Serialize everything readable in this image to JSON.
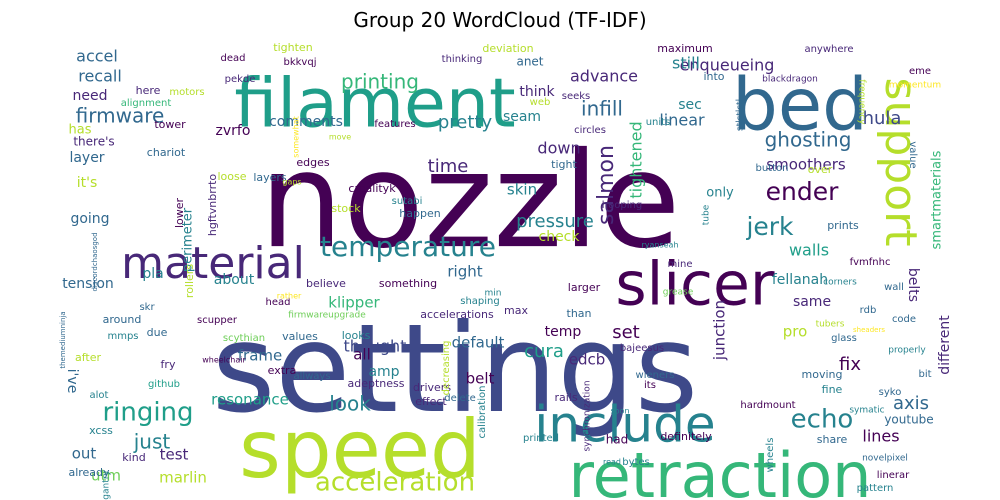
{
  "chart_data": {
    "type": "wordcloud",
    "title": "Group 20 WordCloud (TF-IDF)",
    "colormap": [
      "#440154",
      "#482878",
      "#3e4989",
      "#31688e",
      "#26828e",
      "#1f9e89",
      "#35b779",
      "#6ece58",
      "#b5de2b",
      "#fde725"
    ],
    "words": [
      {
        "text": "nozzle",
        "weight": 100,
        "color": "#440154"
      },
      {
        "text": "settings",
        "weight": 92,
        "color": "#3e4989"
      },
      {
        "text": "speed",
        "weight": 58,
        "color": "#b5de2b"
      },
      {
        "text": "bed",
        "weight": 52,
        "color": "#31688e"
      },
      {
        "text": "filament",
        "weight": 50,
        "color": "#1f9e89"
      },
      {
        "text": "retraction",
        "weight": 45,
        "color": "#35b779"
      },
      {
        "text": "slicer",
        "weight": 44,
        "color": "#440154"
      },
      {
        "text": "include",
        "weight": 38,
        "color": "#26828e"
      },
      {
        "text": "material",
        "weight": 33,
        "color": "#482878"
      },
      {
        "text": "support",
        "weight": 33,
        "color": "#b5de2b"
      },
      {
        "text": "temperature",
        "weight": 22,
        "color": "#26828e"
      },
      {
        "text": "acceleration",
        "weight": 20,
        "color": "#b5de2b"
      },
      {
        "text": "echo",
        "weight": 20,
        "color": "#26828e"
      },
      {
        "text": "ringing",
        "weight": 19,
        "color": "#1f9e89"
      },
      {
        "text": "jerk",
        "weight": 18,
        "color": "#26828e"
      },
      {
        "text": "ender",
        "weight": 18,
        "color": "#440154"
      },
      {
        "text": "salmon",
        "weight": 16,
        "color": "#482878"
      },
      {
        "text": "infill",
        "weight": 15,
        "color": "#31688e"
      },
      {
        "text": "printing",
        "weight": 15,
        "color": "#35b779"
      },
      {
        "text": "firmware",
        "weight": 14,
        "color": "#31688e"
      },
      {
        "text": "ghosting",
        "weight": 14,
        "color": "#31688e"
      },
      {
        "text": "just",
        "weight": 14,
        "color": "#26828e"
      },
      {
        "text": "look",
        "weight": 14,
        "color": "#26828e"
      },
      {
        "text": "axis",
        "weight": 13,
        "color": "#31688e"
      },
      {
        "text": "pretty",
        "weight": 13,
        "color": "#26828e"
      },
      {
        "text": "pressure",
        "weight": 13,
        "color": "#26828e"
      },
      {
        "text": "hula",
        "weight": 13,
        "color": "#3e4989"
      },
      {
        "text": "time",
        "weight": 12,
        "color": "#482878"
      },
      {
        "text": "cura",
        "weight": 12,
        "color": "#1f9e89"
      },
      {
        "text": "set",
        "weight": 12,
        "color": "#440154"
      },
      {
        "text": "fix",
        "weight": 12,
        "color": "#440154"
      },
      {
        "text": "advance",
        "weight": 12,
        "color": "#482878"
      },
      {
        "text": "recall",
        "weight": 12,
        "color": "#31688e"
      },
      {
        "text": "enqueueing",
        "weight": 12,
        "color": "#482878"
      },
      {
        "text": "accel",
        "weight": 11,
        "color": "#31688e"
      },
      {
        "text": "thought",
        "weight": 11,
        "color": "#3e4989"
      },
      {
        "text": "tightened",
        "weight": 11,
        "color": "#35b779"
      },
      {
        "text": "linear",
        "weight": 11,
        "color": "#31688e"
      },
      {
        "text": "still",
        "weight": 11,
        "color": "#26828e"
      },
      {
        "text": "down",
        "weight": 11,
        "color": "#482878"
      },
      {
        "text": "walls",
        "weight": 11,
        "color": "#1f9e89"
      },
      {
        "text": "lines",
        "weight": 11,
        "color": "#440154"
      },
      {
        "text": "resonance",
        "weight": 11,
        "color": "#1f9e89"
      },
      {
        "text": "frame",
        "weight": 11,
        "color": "#31688e"
      },
      {
        "text": "test",
        "weight": 11,
        "color": "#482878"
      },
      {
        "text": "out",
        "weight": 11,
        "color": "#31688e"
      },
      {
        "text": "marlin",
        "weight": 11,
        "color": "#b5de2b"
      },
      {
        "text": "utm",
        "weight": 11,
        "color": "#6ece58"
      },
      {
        "text": "right",
        "weight": 11,
        "color": "#31688e"
      },
      {
        "text": "skin",
        "weight": 11,
        "color": "#26828e"
      },
      {
        "text": "junction",
        "weight": 11,
        "color": "#482878"
      },
      {
        "text": "edcb",
        "weight": 11,
        "color": "#482878"
      },
      {
        "text": "klipper",
        "weight": 11,
        "color": "#35b779"
      },
      {
        "text": "smoothers",
        "weight": 11,
        "color": "#482878"
      },
      {
        "text": "comments",
        "weight": 11,
        "color": "#31688e"
      },
      {
        "text": "belts",
        "weight": 10,
        "color": "#482878"
      },
      {
        "text": "fellanah",
        "weight": 10,
        "color": "#26828e"
      },
      {
        "text": "different",
        "weight": 10,
        "color": "#482878"
      },
      {
        "text": "smartmaterials",
        "weight": 10,
        "color": "#35b779"
      },
      {
        "text": "default",
        "weight": 10,
        "color": "#31688e"
      },
      {
        "text": "all",
        "weight": 10,
        "color": "#440154"
      },
      {
        "text": "belt",
        "weight": 10,
        "color": "#440154"
      },
      {
        "text": "pro",
        "weight": 10,
        "color": "#b5de2b"
      },
      {
        "text": "same",
        "weight": 10,
        "color": "#482878"
      },
      {
        "text": "seam",
        "weight": 10,
        "color": "#26828e"
      },
      {
        "text": "sec",
        "weight": 10,
        "color": "#26828e"
      },
      {
        "text": "think",
        "weight": 10,
        "color": "#482878"
      },
      {
        "text": "temp",
        "weight": 10,
        "color": "#440154"
      },
      {
        "text": "amp",
        "weight": 10,
        "color": "#26828e"
      },
      {
        "text": "check",
        "weight": 10,
        "color": "#b5de2b"
      },
      {
        "text": "it's",
        "weight": 10,
        "color": "#b5de2b"
      },
      {
        "text": "i've",
        "weight": 10,
        "color": "#31688e"
      },
      {
        "text": "layer",
        "weight": 10,
        "color": "#31688e"
      },
      {
        "text": "going",
        "weight": 10,
        "color": "#31688e"
      },
      {
        "text": "tension",
        "weight": 10,
        "color": "#31688e"
      },
      {
        "text": "pla",
        "weight": 10,
        "color": "#26828e"
      },
      {
        "text": "about",
        "weight": 10,
        "color": "#26828e"
      },
      {
        "text": "need",
        "weight": 10,
        "color": "#482878"
      },
      {
        "text": "has",
        "weight": 9,
        "color": "#b5de2b"
      },
      {
        "text": "only",
        "weight": 9,
        "color": "#26828e"
      },
      {
        "text": "zvrfo",
        "weight": 9,
        "color": "#440154"
      },
      {
        "text": "perimeter",
        "weight": 9,
        "color": "#26828e"
      },
      {
        "text": "hgftvnbrrto",
        "weight": 8,
        "color": "#482878"
      },
      {
        "text": "youtube",
        "weight": 8,
        "color": "#31688e"
      },
      {
        "text": "had",
        "weight": 8,
        "color": "#440154"
      },
      {
        "text": "accelerations",
        "weight": 8,
        "color": "#482878"
      },
      {
        "text": "adeptness",
        "weight": 8,
        "color": "#482878"
      },
      {
        "text": "moving",
        "weight": 8,
        "color": "#31688e"
      },
      {
        "text": "fine",
        "weight": 8,
        "color": "#26828e"
      },
      {
        "text": "definitely",
        "weight": 8,
        "color": "#440154"
      },
      {
        "text": "share",
        "weight": 8,
        "color": "#31688e"
      },
      {
        "text": "already",
        "weight": 8,
        "color": "#31688e"
      },
      {
        "text": "kind",
        "weight": 8,
        "color": "#482878"
      },
      {
        "text": "xcss",
        "weight": 8,
        "color": "#26828e"
      },
      {
        "text": "extra",
        "weight": 8,
        "color": "#440154"
      },
      {
        "text": "fry",
        "weight": 8,
        "color": "#482878"
      },
      {
        "text": "due",
        "weight": 8,
        "color": "#31688e"
      },
      {
        "text": "around",
        "weight": 8,
        "color": "#31688e"
      },
      {
        "text": "after",
        "weight": 8,
        "color": "#b5de2b"
      },
      {
        "text": "effect",
        "weight": 8,
        "color": "#482878"
      },
      {
        "text": "drivers",
        "weight": 8,
        "color": "#482878"
      },
      {
        "text": "delete",
        "weight": 8,
        "color": "#31688e"
      },
      {
        "text": "looks",
        "weight": 8,
        "color": "#26828e"
      },
      {
        "text": "values",
        "weight": 8,
        "color": "#31688e"
      },
      {
        "text": "shaping",
        "weight": 8,
        "color": "#26828e"
      },
      {
        "text": "max",
        "weight": 8,
        "color": "#482878"
      },
      {
        "text": "larger",
        "weight": 8,
        "color": "#440154"
      },
      {
        "text": "than",
        "weight": 8,
        "color": "#31688e"
      },
      {
        "text": "bajeesus",
        "weight": 8,
        "color": "#482878"
      },
      {
        "text": "wieners",
        "weight": 8,
        "color": "#31688e"
      },
      {
        "text": "its",
        "weight": 8,
        "color": "#440154"
      },
      {
        "text": "glass",
        "weight": 7,
        "color": "#31688e"
      },
      {
        "text": "bit",
        "weight": 7,
        "color": "#31688e"
      },
      {
        "text": "syko",
        "weight": 7,
        "color": "#31688e"
      },
      {
        "text": "code",
        "weight": 7,
        "color": "#31688e"
      },
      {
        "text": "wall",
        "weight": 7,
        "color": "#31688e"
      },
      {
        "text": "rdb",
        "weight": 7,
        "color": "#31688e"
      },
      {
        "text": "properly",
        "weight": 7,
        "color": "#26828e"
      },
      {
        "text": "fvmfnhc",
        "weight": 7,
        "color": "#440154"
      },
      {
        "text": "mine",
        "weight": 7,
        "color": "#482878"
      },
      {
        "text": "grease",
        "weight": 7,
        "color": "#6ece58"
      },
      {
        "text": "head",
        "weight": 7,
        "color": "#440154"
      },
      {
        "text": "skr",
        "weight": 7,
        "color": "#31688e"
      },
      {
        "text": "scupper",
        "weight": 7,
        "color": "#440154"
      },
      {
        "text": "scythian",
        "weight": 7,
        "color": "#6ece58"
      },
      {
        "text": "mmps",
        "weight": 7,
        "color": "#26828e"
      },
      {
        "text": "github",
        "weight": 7,
        "color": "#1f9e89"
      },
      {
        "text": "alot",
        "weight": 7,
        "color": "#26828e"
      },
      {
        "text": "allways",
        "weight": 7,
        "color": "#31688e"
      },
      {
        "text": "tower",
        "weight": 7,
        "color": "#440154"
      },
      {
        "text": "chariot",
        "weight": 7,
        "color": "#31688e"
      },
      {
        "text": "there's",
        "weight": 7,
        "color": "#482878"
      },
      {
        "text": "loose",
        "weight": 7,
        "color": "#b5de2b"
      },
      {
        "text": "edges",
        "weight": 8,
        "color": "#440154"
      },
      {
        "text": "layers",
        "weight": 8,
        "color": "#31688e"
      },
      {
        "text": "crealityk",
        "weight": 8,
        "color": "#440154"
      },
      {
        "text": "stock",
        "weight": 8,
        "color": "#b5de2b"
      },
      {
        "text": "happen",
        "weight": 8,
        "color": "#31688e"
      },
      {
        "text": "believe",
        "weight": 8,
        "color": "#482878"
      },
      {
        "text": "something",
        "weight": 8,
        "color": "#440154"
      },
      {
        "text": "tight",
        "weight": 8,
        "color": "#31688e"
      },
      {
        "text": "sutabi",
        "weight": 7,
        "color": "#26828e"
      },
      {
        "text": "hooping",
        "weight": 7,
        "color": "#482878"
      },
      {
        "text": "prints",
        "weight": 8,
        "color": "#31688e"
      },
      {
        "text": "over",
        "weight": 8,
        "color": "#b5de2b"
      },
      {
        "text": "button",
        "weight": 7,
        "color": "#31688e"
      },
      {
        "text": "features",
        "weight": 7,
        "color": "#440154"
      },
      {
        "text": "units",
        "weight": 7,
        "color": "#26828e"
      },
      {
        "text": "circles",
        "weight": 7,
        "color": "#482878"
      },
      {
        "text": "web",
        "weight": 7,
        "color": "#b5de2b"
      },
      {
        "text": "seeks",
        "weight": 7,
        "color": "#482878"
      },
      {
        "text": "anet",
        "weight": 8,
        "color": "#31688e"
      },
      {
        "text": "deviation",
        "weight": 8,
        "color": "#b5de2b"
      },
      {
        "text": "thinking",
        "weight": 7,
        "color": "#482878"
      },
      {
        "text": "tighten",
        "weight": 8,
        "color": "#b5de2b"
      },
      {
        "text": "bkkvqj",
        "weight": 7,
        "color": "#440154"
      },
      {
        "text": "dead",
        "weight": 7,
        "color": "#440154"
      },
      {
        "text": "pekde",
        "weight": 7,
        "color": "#482878"
      },
      {
        "text": "alignment",
        "weight": 7,
        "color": "#35b779"
      },
      {
        "text": "motors",
        "weight": 7,
        "color": "#b5de2b"
      },
      {
        "text": "here",
        "weight": 8,
        "color": "#482878"
      },
      {
        "text": "maximum",
        "weight": 8,
        "color": "#440154"
      },
      {
        "text": "anywhere",
        "weight": 7,
        "color": "#482878"
      },
      {
        "text": "eme",
        "weight": 7,
        "color": "#440154"
      },
      {
        "text": "momentum",
        "weight": 6,
        "color": "#fde725"
      },
      {
        "text": "blackdragon",
        "weight": 6,
        "color": "#482878"
      },
      {
        "text": "into",
        "weight": 8,
        "color": "#31688e"
      },
      {
        "text": "stlstlstl",
        "weight": 6,
        "color": "#31688e"
      },
      {
        "text": "frequency",
        "weight": 6,
        "color": "#b5de2b"
      },
      {
        "text": "value",
        "weight": 7,
        "color": "#31688e"
      },
      {
        "text": "tube",
        "weight": 6,
        "color": "#26828e"
      },
      {
        "text": "corners",
        "weight": 6,
        "color": "#26828e"
      },
      {
        "text": "tubers",
        "weight": 6,
        "color": "#b5de2b"
      },
      {
        "text": "sheaders",
        "weight": 6,
        "color": "#fde725"
      },
      {
        "text": "firmwareupgrade",
        "weight": 6,
        "color": "#6ece58"
      },
      {
        "text": "rather",
        "weight": 6,
        "color": "#fde725"
      },
      {
        "text": "min",
        "weight": 6,
        "color": "#26828e"
      },
      {
        "text": "ryanseah",
        "weight": 6,
        "color": "#26828e"
      },
      {
        "text": "discordchaosgod",
        "weight": 5,
        "color": "#31688e"
      },
      {
        "text": "themediumninja",
        "weight": 5,
        "color": "#31688e"
      },
      {
        "text": "rails",
        "weight": 8,
        "color": "#482878"
      },
      {
        "text": "decreasing",
        "weight": 7,
        "color": "#b5de2b"
      },
      {
        "text": "synchronization",
        "weight": 6,
        "color": "#482878"
      },
      {
        "text": "calibration",
        "weight": 7,
        "color": "#26828e"
      },
      {
        "text": "printed",
        "weight": 7,
        "color": "#26828e"
      },
      {
        "text": "bytes",
        "weight": 7,
        "color": "#26828e"
      },
      {
        "text": "read",
        "weight": 6,
        "color": "#26828e"
      },
      {
        "text": "soon",
        "weight": 6,
        "color": "#26828e"
      },
      {
        "text": "hardmount",
        "weight": 7,
        "color": "#440154"
      },
      {
        "text": "symatic",
        "weight": 7,
        "color": "#26828e"
      },
      {
        "text": "novelpixel",
        "weight": 6,
        "color": "#31688e"
      },
      {
        "text": "linerar",
        "weight": 7,
        "color": "#440154"
      },
      {
        "text": "pattern",
        "weight": 7,
        "color": "#26828e"
      },
      {
        "text": "wheels",
        "weight": 7,
        "color": "#26828e"
      },
      {
        "text": "gantry",
        "weight": 6,
        "color": "#26828e"
      },
      {
        "text": "wheelchair",
        "weight": 6,
        "color": "#440154"
      },
      {
        "text": "lower",
        "weight": 8,
        "color": "#440154"
      },
      {
        "text": "rollers",
        "weight": 7,
        "color": "#b5de2b"
      },
      {
        "text": "somewhat",
        "weight": 6,
        "color": "#fde725"
      },
      {
        "text": "move",
        "weight": 6,
        "color": "#b5de2b"
      },
      {
        "text": "gaps",
        "weight": 6,
        "color": "#b5de2b"
      }
    ]
  }
}
